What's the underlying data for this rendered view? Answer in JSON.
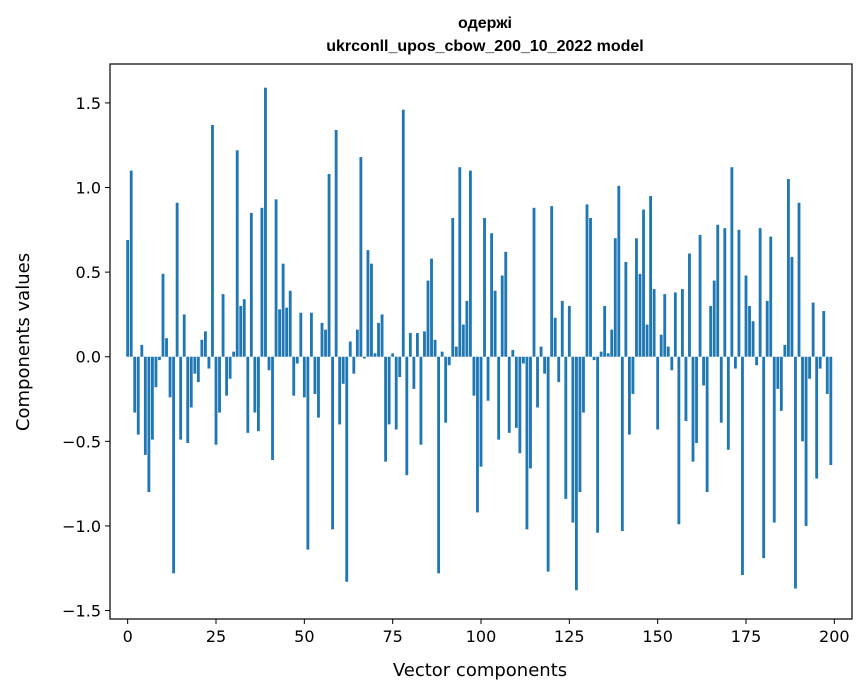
{
  "chart_data": {
    "type": "bar",
    "title": "одержі",
    "subtitle": "ukrconll_upos_cbow_200_10_2022 model",
    "xlabel": "Vector components",
    "ylabel": "Components values",
    "xlim": [
      -5,
      205
    ],
    "ylim": [
      -1.55,
      1.73
    ],
    "xticks": [
      0,
      25,
      50,
      75,
      100,
      125,
      150,
      175,
      200
    ],
    "yticks": [
      -1.5,
      -1.0,
      -0.5,
      0.0,
      0.5,
      1.0,
      1.5
    ],
    "ytick_labels": [
      "−1.5",
      "−1.0",
      "−0.5",
      "0.0",
      "0.5",
      "1.0",
      "1.5"
    ],
    "bar_color": "#1f77b4",
    "grid": false,
    "values": [
      0.69,
      1.1,
      -0.33,
      -0.46,
      0.07,
      -0.58,
      -0.8,
      -0.49,
      -0.18,
      -0.02,
      0.49,
      0.11,
      -0.24,
      -1.28,
      0.91,
      -0.49,
      0.25,
      -0.51,
      -0.3,
      -0.1,
      -0.15,
      0.1,
      0.15,
      -0.07,
      1.37,
      -0.52,
      -0.33,
      0.37,
      -0.23,
      -0.13,
      0.03,
      1.22,
      0.3,
      0.34,
      -0.45,
      0.85,
      -0.33,
      -0.44,
      0.88,
      1.59,
      -0.08,
      -0.61,
      0.93,
      0.28,
      0.55,
      0.29,
      0.39,
      -0.23,
      -0.04,
      0.26,
      -0.24,
      -1.14,
      0.26,
      -0.22,
      -0.36,
      0.2,
      0.16,
      1.08,
      -1.02,
      1.34,
      -0.4,
      -0.16,
      -1.33,
      0.09,
      -0.1,
      0.16,
      1.18,
      -0.01,
      0.63,
      0.55,
      0.02,
      0.2,
      0.25,
      -0.62,
      -0.4,
      0.02,
      -0.43,
      -0.12,
      1.46,
      -0.7,
      0.14,
      -0.19,
      0.14,
      -0.52,
      0.15,
      0.45,
      0.58,
      0.1,
      -1.28,
      0.03,
      -0.39,
      -0.05,
      0.82,
      0.06,
      1.12,
      0.19,
      0.33,
      1.1,
      -0.23,
      -0.92,
      -0.65,
      0.82,
      -0.26,
      0.73,
      0.39,
      -0.49,
      0.48,
      0.62,
      -0.45,
      0.04,
      -0.42,
      -0.57,
      -0.04,
      -1.02,
      -0.66,
      0.88,
      -0.3,
      0.06,
      -0.1,
      -1.27,
      0.89,
      0.23,
      -0.15,
      0.33,
      -0.84,
      0.3,
      -0.98,
      -1.38,
      -0.8,
      -0.33,
      0.9,
      0.82,
      -0.02,
      -1.04,
      0.03,
      0.3,
      0.02,
      0.16,
      0.7,
      1.01,
      -1.03,
      0.56,
      -0.46,
      -0.22,
      0.7,
      0.49,
      0.87,
      0.19,
      0.95,
      0.4,
      -0.43,
      0.13,
      0.37,
      0.06,
      -0.08,
      0.38,
      -0.99,
      0.4,
      -0.38,
      0.61,
      -0.62,
      -0.51,
      0.72,
      -0.17,
      -0.8,
      0.3,
      0.45,
      0.78,
      -0.39,
      0.76,
      -0.55,
      1.12,
      -0.07,
      0.75,
      -1.29,
      0.48,
      0.3,
      0.21,
      -0.05,
      0.76,
      -1.19,
      0.33,
      0.71,
      -0.98,
      -0.19,
      -0.32,
      0.07,
      1.05,
      0.59,
      -1.37,
      0.91,
      -0.5,
      -1.0,
      -0.13,
      0.32,
      -0.72,
      -0.07,
      0.27,
      -0.22,
      -0.64
    ]
  }
}
